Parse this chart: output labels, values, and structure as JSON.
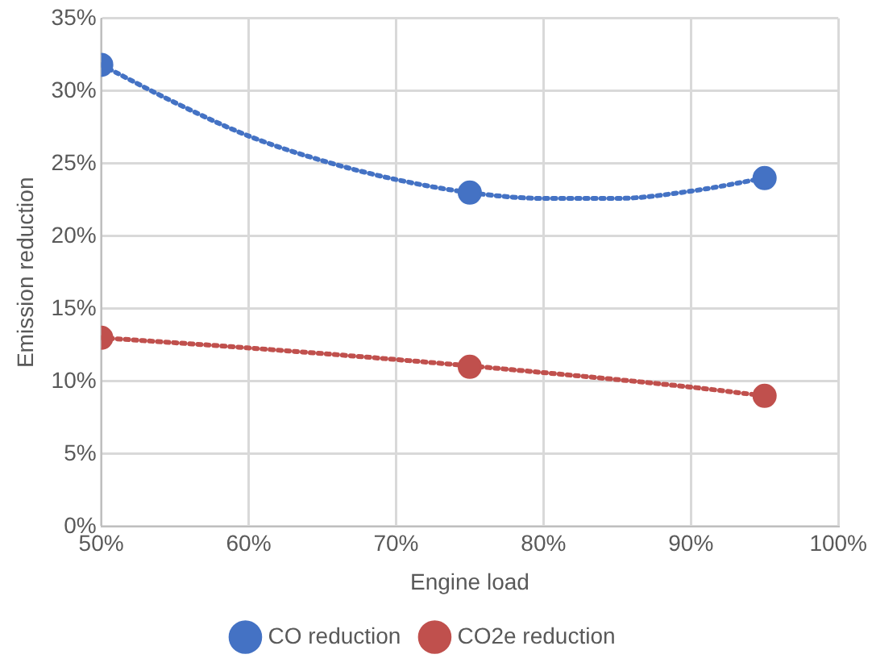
{
  "chart_data": {
    "type": "scatter",
    "xlabel": "Engine load",
    "ylabel": "Emission reduction",
    "x": [
      50,
      75,
      95
    ],
    "series": [
      {
        "name": "CO reduction",
        "color": "#4472c4",
        "values": [
          31.8,
          23,
          24
        ],
        "marker": "circle"
      },
      {
        "name": "CO2e reduction",
        "color": "#c0504d",
        "values": [
          13,
          11,
          9
        ],
        "marker": "circle"
      },
      {
        "type": "line",
        "color": "#4472c4",
        "x": [
          50,
          55,
          60,
          65,
          70,
          75,
          80,
          85,
          90,
          95
        ],
        "values": [
          31.8,
          29.2,
          26.9,
          25.2,
          23.9,
          23,
          22.6,
          22.6,
          23.1,
          24
        ],
        "line_style": "dotted",
        "marker": "none"
      },
      {
        "type": "line",
        "color": "#c0504d",
        "x": [
          50,
          60,
          70,
          80,
          90,
          95
        ],
        "values": [
          13,
          12.3,
          11.5,
          10.6,
          9.6,
          9
        ],
        "line_style": "dotted",
        "marker": "none"
      }
    ],
    "xlim": [
      50,
      100
    ],
    "xticks": [
      {
        "value": 50,
        "label": "50%"
      },
      {
        "value": 60,
        "label": "60%"
      },
      {
        "value": 70,
        "label": "70%"
      },
      {
        "value": 80,
        "label": "80%"
      },
      {
        "value": 90,
        "label": "90%"
      },
      {
        "value": 100,
        "label": "100%"
      }
    ],
    "ylim": [
      0,
      35
    ],
    "yticks": [
      {
        "value": 0,
        "label": "0%"
      },
      {
        "value": 5,
        "label": "5%"
      },
      {
        "value": 10,
        "label": "10%"
      },
      {
        "value": 15,
        "label": "15%"
      },
      {
        "value": 20,
        "label": "20%"
      },
      {
        "value": 25,
        "label": "25%"
      },
      {
        "value": 30,
        "label": "30%"
      },
      {
        "value": 35,
        "label": "35%"
      }
    ],
    "grid": true,
    "legend": "bottom"
  }
}
